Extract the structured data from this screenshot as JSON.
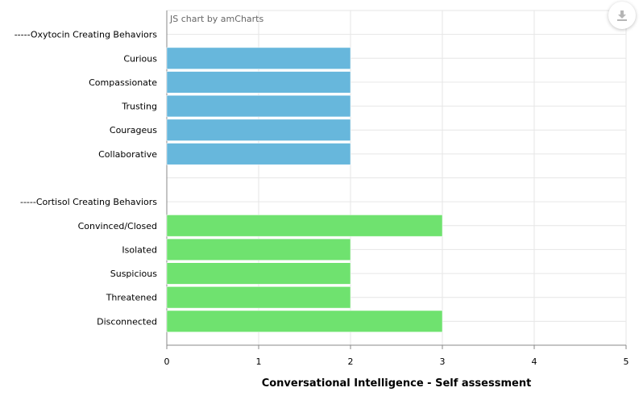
{
  "chart_data": {
    "type": "bar",
    "orientation": "horizontal",
    "credit": "JS chart by amCharts",
    "xlabel": "Conversational Intelligence - Self assessment",
    "ylabel": "",
    "xlim": [
      0,
      5
    ],
    "x_ticks": [
      "0",
      "1",
      "2",
      "3",
      "4",
      "5"
    ],
    "grid": true,
    "categories": [
      "-----Oxytocin Creating Behaviors",
      "Curious",
      "Compassionate",
      "Trusting",
      "Courageus",
      "Collaborative",
      "",
      "-----Cortisol Creating Behaviors",
      "Convinced/Closed",
      "Isolated",
      "Suspicious",
      "Threatened",
      "Disconnected"
    ],
    "values": [
      null,
      2,
      2,
      2,
      2,
      2,
      null,
      null,
      3,
      2,
      2,
      2,
      3
    ],
    "bar_colors": [
      null,
      "#67b7dc",
      "#67b7dc",
      "#67b7dc",
      "#67b7dc",
      "#67b7dc",
      null,
      null,
      "#6fe26f",
      "#6fe26f",
      "#6fe26f",
      "#6fe26f",
      "#6fe26f"
    ]
  },
  "toolbar": {
    "export_icon": "download-icon"
  }
}
